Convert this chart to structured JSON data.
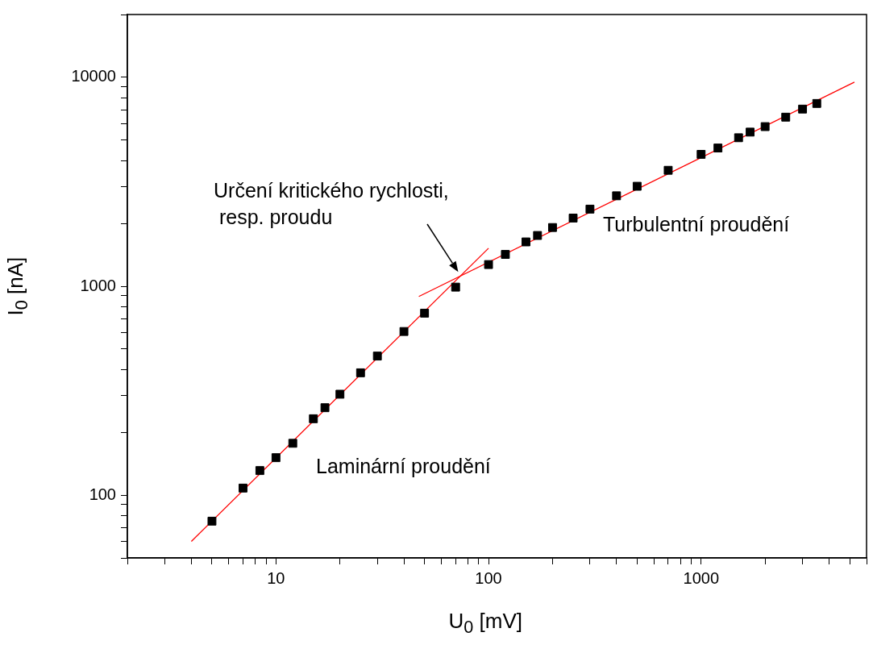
{
  "chart_data": {
    "type": "scatter",
    "xlabel": "U$_{0}$ [mV]",
    "ylabel": "I$_{0}$ [nA]",
    "log": "xy",
    "xlim": [
      2,
      6000
    ],
    "ylim": [
      50,
      20000
    ],
    "xticks": [
      {
        "value": 2,
        "label": null
      },
      {
        "value": 3,
        "label": null
      },
      {
        "value": 4,
        "label": null
      },
      {
        "value": 5,
        "label": null
      },
      {
        "value": 6,
        "label": null
      },
      {
        "value": 7,
        "label": null
      },
      {
        "value": 8,
        "label": null
      },
      {
        "value": 9,
        "label": null
      },
      10,
      {
        "value": 20,
        "label": null
      },
      {
        "value": 30,
        "label": null
      },
      {
        "value": 40,
        "label": null
      },
      {
        "value": 50,
        "label": null
      },
      {
        "value": 60,
        "label": null
      },
      {
        "value": 70,
        "label": null
      },
      {
        "value": 80,
        "label": null
      },
      {
        "value": 90,
        "label": null
      },
      100,
      {
        "value": 200,
        "label": null
      },
      {
        "value": 300,
        "label": null
      },
      {
        "value": 400,
        "label": null
      },
      {
        "value": 500,
        "label": null
      },
      {
        "value": 600,
        "label": null
      },
      {
        "value": 700,
        "label": null
      },
      {
        "value": 800,
        "label": null
      },
      {
        "value": 900,
        "label": null
      },
      1000,
      {
        "value": 2000,
        "label": null
      },
      {
        "value": 3000,
        "label": null
      },
      {
        "value": 4000,
        "label": null
      },
      {
        "value": 5000,
        "label": null
      },
      {
        "value": 6000,
        "label": null
      }
    ],
    "yticks": [
      {
        "value": 50,
        "label": null
      },
      {
        "value": 60,
        "label": null
      },
      {
        "value": 70,
        "label": null
      },
      {
        "value": 80,
        "label": null
      },
      {
        "value": 90,
        "label": null
      },
      100,
      {
        "value": 200,
        "label": null
      },
      {
        "value": 300,
        "label": null
      },
      {
        "value": 400,
        "label": null
      },
      {
        "value": 500,
        "label": null
      },
      {
        "value": 600,
        "label": null
      },
      {
        "value": 700,
        "label": null
      },
      {
        "value": 800,
        "label": null
      },
      {
        "value": 900,
        "label": null
      },
      1000,
      {
        "value": 2000,
        "label": null
      },
      {
        "value": 3000,
        "label": null
      },
      {
        "value": 4000,
        "label": null
      },
      {
        "value": 5000,
        "label": null
      },
      {
        "value": 6000,
        "label": null
      },
      {
        "value": 7000,
        "label": null
      },
      {
        "value": 8000,
        "label": null
      },
      {
        "value": 9000,
        "label": null
      },
      10000,
      {
        "value": 20000,
        "label": null
      }
    ],
    "grid": false,
    "legend": false,
    "series": [
      {
        "marker": "square",
        "color": "#000000",
        "x": [
          5,
          7,
          8.4,
          10,
          12,
          15,
          17,
          20,
          25,
          30,
          40,
          50,
          70,
          100,
          120,
          150,
          170,
          200,
          250,
          300,
          400,
          500,
          700,
          1000,
          1200,
          1500,
          1700,
          2000,
          2500,
          3000,
          3500
        ],
        "values": [
          75,
          108,
          131,
          151,
          177,
          232,
          262,
          304,
          385,
          463,
          607,
          743,
          990,
          1270,
          1420,
          1630,
          1750,
          1910,
          2120,
          2340,
          2710,
          3010,
          3590,
          4280,
          4590,
          5140,
          5470,
          5810,
          6450,
          7050,
          7500
        ]
      },
      {
        "type": "line",
        "marker": "none",
        "color": "#ff0000",
        "x": [
          4,
          100
        ],
        "values": [
          60,
          1520
        ]
      },
      {
        "type": "line",
        "marker": "none",
        "color": "#ff0000",
        "x": [
          47,
          5260
        ],
        "values": [
          893,
          9490
        ]
      }
    ],
    "annotations": [
      {
        "text": "Určení kritického rychlosti,\n resp. proudu",
        "x": 72,
        "y": 1170
      },
      "Laminární proudění",
      "Turbulentní proudění"
    ]
  }
}
